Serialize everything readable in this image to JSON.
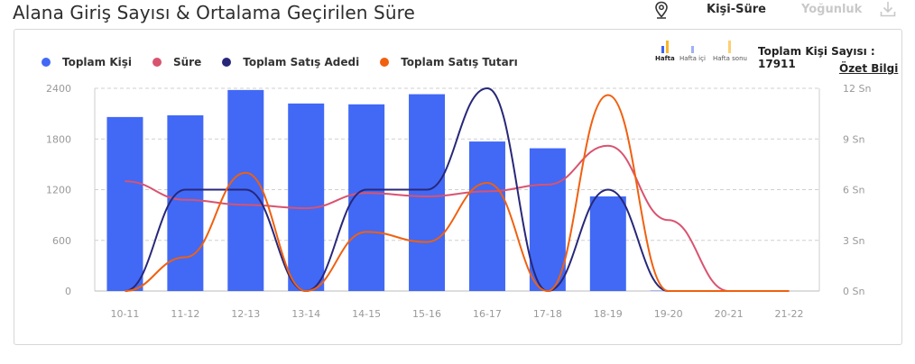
{
  "header": {
    "title": "Alana Giriş Sayısı & Ortalama Geçirilen Süre",
    "mode_active": "Kişi-Süre",
    "mode_inactive": "Yoğunluk"
  },
  "period_selector": {
    "items": [
      "Hafta",
      "Hafta içi",
      "Hafta sonu"
    ]
  },
  "summary": {
    "total_label": "Toplam Kişi Sayısı : 17911",
    "details_link": "Özet Bilgi"
  },
  "icons": {
    "location": "location-pin-icon",
    "download": "download-icon"
  },
  "colors": {
    "bars": "#4169f5",
    "sure": "#d9536f",
    "satis_adedi": "#27277a",
    "satis_tutari": "#f0600f",
    "grid": "#cfcfcf"
  },
  "chart_data": {
    "type": "bar",
    "categories": [
      "10-11",
      "11-12",
      "12-13",
      "13-14",
      "14-15",
      "15-16",
      "16-17",
      "17-18",
      "18-19",
      "19-20",
      "20-21",
      "21-22"
    ],
    "ylim": [
      0,
      2400
    ],
    "y2lim": [
      0,
      12
    ],
    "yticks": [
      "0",
      "600",
      "1200",
      "1800",
      "2400"
    ],
    "y2ticks": [
      "0 Sn",
      "3 Sn",
      "6 Sn",
      "9 Sn",
      "12 Sn"
    ],
    "grid": true,
    "legend_position": "top-left",
    "series": [
      {
        "name": "Toplam Kişi",
        "kind": "bar",
        "axis": "left",
        "values": [
          2060,
          2080,
          2380,
          2220,
          2210,
          2330,
          1770,
          1690,
          1120,
          5,
          0,
          0
        ]
      },
      {
        "name": "Süre",
        "kind": "line",
        "axis": "right",
        "values": [
          6.5,
          5.4,
          5.1,
          4.9,
          5.8,
          5.6,
          5.9,
          6.3,
          8.6,
          4.2,
          0,
          0
        ]
      },
      {
        "name": "Toplam Satış Adedi",
        "kind": "line",
        "axis": "left",
        "values": [
          0,
          1200,
          1200,
          0,
          1200,
          1200,
          2400,
          0,
          1200,
          0,
          0,
          0
        ]
      },
      {
        "name": "Toplam Satış Tutarı",
        "kind": "line",
        "axis": "left",
        "values": [
          0,
          400,
          1400,
          0,
          700,
          580,
          1280,
          0,
          2320,
          0,
          0,
          0
        ]
      }
    ]
  }
}
